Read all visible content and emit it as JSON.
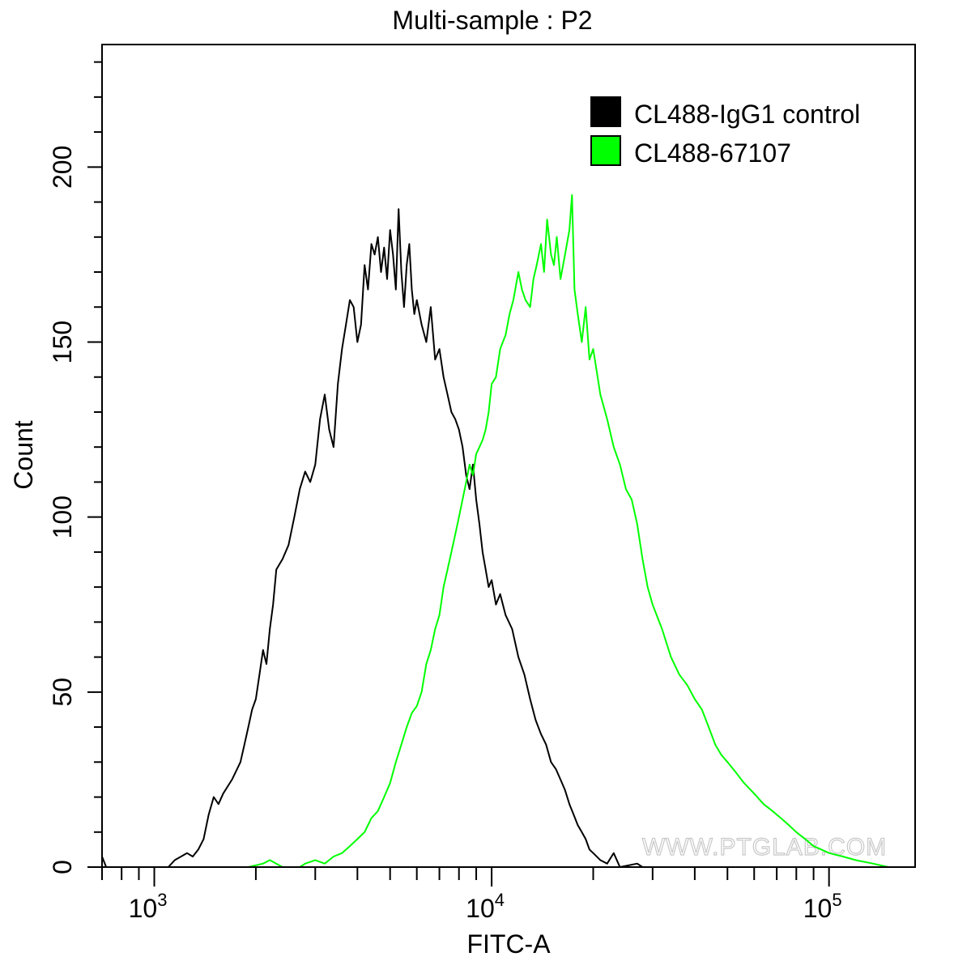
{
  "chart_data": {
    "type": "line",
    "title": "Multi-sample : P2",
    "xlabel": "FITC-A",
    "ylabel": "Count",
    "x_scale": "log",
    "xlim": [
      700,
      180000
    ],
    "ylim": [
      0,
      235
    ],
    "x_ticks": [
      {
        "value": 1000,
        "base": "10",
        "exp": "3"
      },
      {
        "value": 10000,
        "base": "10",
        "exp": "4"
      },
      {
        "value": 100000,
        "base": "10",
        "exp": "5"
      }
    ],
    "y_ticks": [
      "0",
      "50",
      "100",
      "150",
      "200"
    ],
    "y_tick_values": [
      0,
      50,
      100,
      150,
      200
    ],
    "legend_position": "top-right",
    "watermark": "WWW.PTGLAB.COM",
    "series": [
      {
        "name": "CL488-IgG1 control",
        "color": "#000000",
        "points": [
          [
            700,
            3
          ],
          [
            720,
            0
          ],
          [
            1100,
            0
          ],
          [
            1150,
            2
          ],
          [
            1200,
            3
          ],
          [
            1250,
            4
          ],
          [
            1300,
            3
          ],
          [
            1350,
            5
          ],
          [
            1400,
            8
          ],
          [
            1450,
            15
          ],
          [
            1500,
            20
          ],
          [
            1550,
            18
          ],
          [
            1600,
            21
          ],
          [
            1700,
            25
          ],
          [
            1800,
            30
          ],
          [
            1850,
            35
          ],
          [
            1900,
            40
          ],
          [
            1950,
            45
          ],
          [
            2000,
            48
          ],
          [
            2050,
            55
          ],
          [
            2100,
            62
          ],
          [
            2150,
            58
          ],
          [
            2200,
            68
          ],
          [
            2250,
            75
          ],
          [
            2300,
            85
          ],
          [
            2400,
            88
          ],
          [
            2500,
            92
          ],
          [
            2600,
            100
          ],
          [
            2700,
            108
          ],
          [
            2800,
            113
          ],
          [
            2900,
            110
          ],
          [
            3000,
            115
          ],
          [
            3100,
            128
          ],
          [
            3200,
            135
          ],
          [
            3300,
            125
          ],
          [
            3400,
            120
          ],
          [
            3500,
            138
          ],
          [
            3600,
            148
          ],
          [
            3700,
            155
          ],
          [
            3800,
            162
          ],
          [
            3900,
            160
          ],
          [
            4000,
            150
          ],
          [
            4100,
            155
          ],
          [
            4200,
            172
          ],
          [
            4300,
            165
          ],
          [
            4400,
            178
          ],
          [
            4500,
            175
          ],
          [
            4600,
            180
          ],
          [
            4700,
            170
          ],
          [
            4800,
            177
          ],
          [
            4900,
            168
          ],
          [
            5000,
            182
          ],
          [
            5100,
            175
          ],
          [
            5200,
            165
          ],
          [
            5300,
            188
          ],
          [
            5400,
            170
          ],
          [
            5500,
            160
          ],
          [
            5600,
            172
          ],
          [
            5700,
            178
          ],
          [
            5800,
            165
          ],
          [
            5900,
            158
          ],
          [
            6000,
            162
          ],
          [
            6200,
            155
          ],
          [
            6400,
            150
          ],
          [
            6600,
            160
          ],
          [
            6800,
            145
          ],
          [
            7000,
            148
          ],
          [
            7200,
            140
          ],
          [
            7400,
            135
          ],
          [
            7600,
            130
          ],
          [
            7800,
            128
          ],
          [
            8000,
            125
          ],
          [
            8200,
            120
          ],
          [
            8400,
            112
          ],
          [
            8600,
            108
          ],
          [
            8800,
            115
          ],
          [
            9000,
            105
          ],
          [
            9200,
            98
          ],
          [
            9400,
            90
          ],
          [
            9600,
            85
          ],
          [
            9800,
            80
          ],
          [
            10000,
            82
          ],
          [
            10300,
            75
          ],
          [
            10600,
            78
          ],
          [
            11000,
            72
          ],
          [
            11500,
            68
          ],
          [
            12000,
            60
          ],
          [
            12500,
            55
          ],
          [
            13000,
            48
          ],
          [
            13500,
            42
          ],
          [
            14000,
            38
          ],
          [
            14500,
            35
          ],
          [
            15000,
            30
          ],
          [
            15500,
            28
          ],
          [
            16000,
            25
          ],
          [
            16500,
            22
          ],
          [
            17000,
            18
          ],
          [
            17500,
            15
          ],
          [
            18000,
            12
          ],
          [
            18500,
            10
          ],
          [
            19000,
            8
          ],
          [
            19500,
            5
          ],
          [
            20000,
            4
          ],
          [
            21000,
            2
          ],
          [
            22000,
            1
          ],
          [
            23000,
            4
          ],
          [
            24000,
            0
          ],
          [
            27000,
            1
          ],
          [
            28000,
            0
          ]
        ]
      },
      {
        "name": "CL488-67107",
        "color": "#00ff00",
        "points": [
          [
            1900,
            0
          ],
          [
            2100,
            1
          ],
          [
            2200,
            2
          ],
          [
            2400,
            0
          ],
          [
            2700,
            0
          ],
          [
            2800,
            1
          ],
          [
            3000,
            2
          ],
          [
            3200,
            1
          ],
          [
            3400,
            3
          ],
          [
            3600,
            4
          ],
          [
            3800,
            6
          ],
          [
            4000,
            8
          ],
          [
            4200,
            10
          ],
          [
            4400,
            14
          ],
          [
            4600,
            16
          ],
          [
            4800,
            20
          ],
          [
            5000,
            24
          ],
          [
            5200,
            30
          ],
          [
            5400,
            35
          ],
          [
            5600,
            40
          ],
          [
            5800,
            44
          ],
          [
            6000,
            46
          ],
          [
            6200,
            50
          ],
          [
            6400,
            58
          ],
          [
            6600,
            62
          ],
          [
            6800,
            68
          ],
          [
            7000,
            72
          ],
          [
            7200,
            80
          ],
          [
            7400,
            85
          ],
          [
            7600,
            90
          ],
          [
            7800,
            95
          ],
          [
            8000,
            100
          ],
          [
            8200,
            105
          ],
          [
            8400,
            110
          ],
          [
            8600,
            115
          ],
          [
            8800,
            112
          ],
          [
            9000,
            118
          ],
          [
            9200,
            120
          ],
          [
            9400,
            122
          ],
          [
            9600,
            125
          ],
          [
            9800,
            130
          ],
          [
            10000,
            138
          ],
          [
            10300,
            140
          ],
          [
            10600,
            148
          ],
          [
            11000,
            152
          ],
          [
            11300,
            158
          ],
          [
            11600,
            162
          ],
          [
            12000,
            170
          ],
          [
            12300,
            165
          ],
          [
            12600,
            162
          ],
          [
            13000,
            160
          ],
          [
            13300,
            168
          ],
          [
            13600,
            172
          ],
          [
            14000,
            178
          ],
          [
            14300,
            170
          ],
          [
            14600,
            185
          ],
          [
            15000,
            175
          ],
          [
            15300,
            172
          ],
          [
            15600,
            180
          ],
          [
            16000,
            168
          ],
          [
            16500,
            175
          ],
          [
            17000,
            182
          ],
          [
            17300,
            192
          ],
          [
            17600,
            165
          ],
          [
            18000,
            158
          ],
          [
            18500,
            150
          ],
          [
            19000,
            160
          ],
          [
            19500,
            145
          ],
          [
            20000,
            148
          ],
          [
            21000,
            135
          ],
          [
            22000,
            128
          ],
          [
            23000,
            120
          ],
          [
            24000,
            115
          ],
          [
            25000,
            108
          ],
          [
            26000,
            105
          ],
          [
            27000,
            98
          ],
          [
            28000,
            88
          ],
          [
            29000,
            80
          ],
          [
            30000,
            75
          ],
          [
            32000,
            68
          ],
          [
            34000,
            60
          ],
          [
            36000,
            55
          ],
          [
            38000,
            52
          ],
          [
            40000,
            48
          ],
          [
            42000,
            45
          ],
          [
            44000,
            40
          ],
          [
            46000,
            35
          ],
          [
            48000,
            32
          ],
          [
            50000,
            30
          ],
          [
            53000,
            27
          ],
          [
            56000,
            24
          ],
          [
            60000,
            21
          ],
          [
            64000,
            18
          ],
          [
            68000,
            16
          ],
          [
            72000,
            14
          ],
          [
            76000,
            12
          ],
          [
            80000,
            10
          ],
          [
            85000,
            8
          ],
          [
            90000,
            6
          ],
          [
            95000,
            5
          ],
          [
            100000,
            4
          ],
          [
            110000,
            3
          ],
          [
            120000,
            2
          ],
          [
            135000,
            1
          ],
          [
            150000,
            0
          ],
          [
            180000,
            0
          ]
        ]
      }
    ]
  }
}
